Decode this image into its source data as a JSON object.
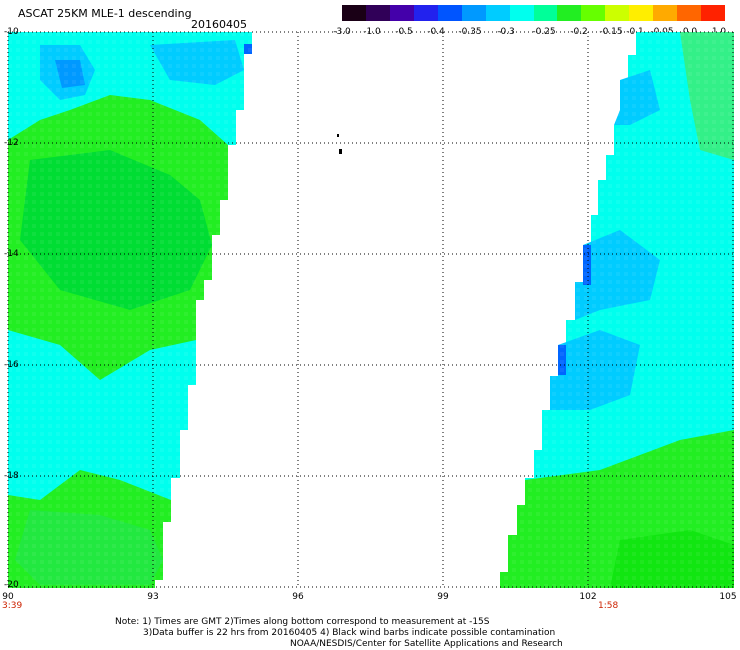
{
  "title": "ASCAT 25KM MLE-1 descending",
  "date": "20160405",
  "colorbar": {
    "labels": [
      "-3.0",
      "-1.0",
      "-0.5",
      "-0.4",
      "-0.35",
      "-0.3",
      "-0.25",
      "-0.2",
      "-0.15",
      "-0.1",
      "-0.05",
      "0.0",
      "1.0"
    ],
    "colors": [
      "#1a0016",
      "#300058",
      "#4400aa",
      "#2222ee",
      "#0055ff",
      "#0099ff",
      "#00ccff",
      "#00ffee",
      "#00ff99",
      "#22ee22",
      "#66ff00",
      "#ccff00",
      "#ffee00",
      "#ffaa00",
      "#ff6600",
      "#ff2200"
    ]
  },
  "map": {
    "lon_range": [
      90,
      105
    ],
    "lat_range": [
      -20,
      -10
    ],
    "x_ticks": [
      "90",
      "93",
      "96",
      "99",
      "102",
      "105"
    ],
    "y_ticks": [
      "-10",
      "-12",
      "-14",
      "-16",
      "-18",
      "-20"
    ],
    "swath_colors": {
      "green": "#22ee22",
      "cyan": "#00ffee",
      "blue": "#00ccff",
      "deep_blue": "#0066ff"
    }
  },
  "times": {
    "left": "3:39",
    "right": "1:58"
  },
  "notes": {
    "line1": "Note: 1) Times are GMT 2)Times along bottom correspond to measurement at -15S",
    "line2": "3)Data buffer is 22 hrs from 20160405 4) Black wind barbs indicate possible contamination",
    "line3": "NOAA/NESDIS/Center for Satellite Applications and Research"
  }
}
